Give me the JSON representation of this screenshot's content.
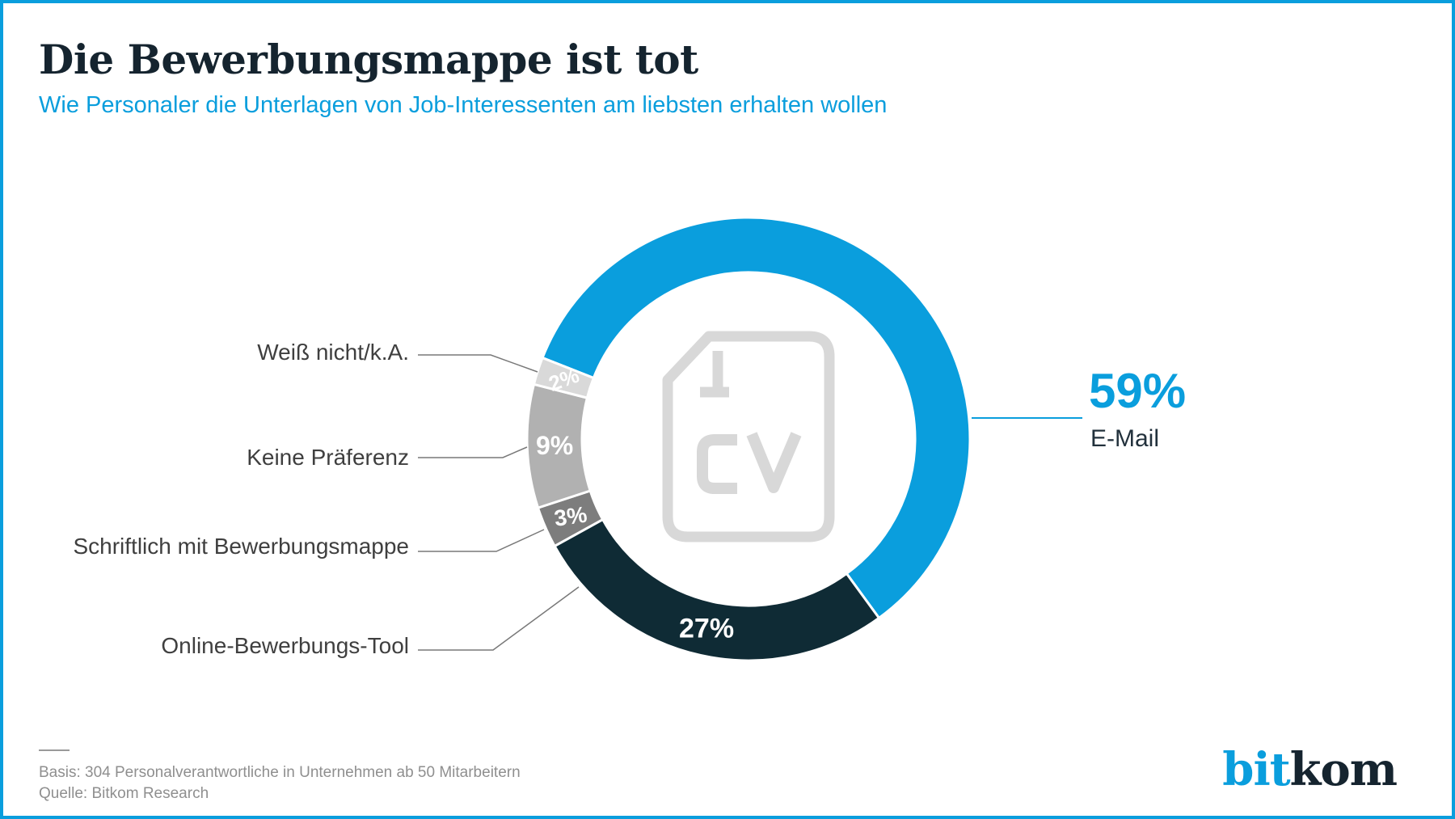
{
  "header": {
    "title": "Die Bewerbungsmappe ist tot",
    "subtitle": "Wie Personaler die Unterlagen von Job-Interessenten am liebsten erhalten wollen"
  },
  "chart_data": {
    "type": "pie",
    "donut": true,
    "title": "Die Bewerbungsmappe ist tot",
    "unit": "%",
    "direction": "clockwise",
    "start_angle_deg": 158.5,
    "series": [
      {
        "label": "E-Mail",
        "value": 59,
        "color": "#0a9edd"
      },
      {
        "label": "Online-Bewerbungs-Tool",
        "value": 27,
        "color": "#0f2b35"
      },
      {
        "label": "Schriftlich mit Bewerbungsmappe",
        "value": 3,
        "color": "#7d7d7d"
      },
      {
        "label": "Keine Präferenz",
        "value": 9,
        "color": "#b1b1b1"
      },
      {
        "label": "Weiß nicht/k.A.",
        "value": 2,
        "color": "#d9d9d9"
      }
    ],
    "center_icon": "cv-document",
    "legend_position": "left-leader-lines"
  },
  "callout": {
    "percent": "59%",
    "label": "E-Mail"
  },
  "footer": {
    "basis": "Basis: 304 Personalverantwortliche in Unternehmen ab 50 Mitarbeitern",
    "quelle": "Quelle: Bitkom Research"
  },
  "logo": {
    "part1": "bit",
    "part2": "kom"
  }
}
